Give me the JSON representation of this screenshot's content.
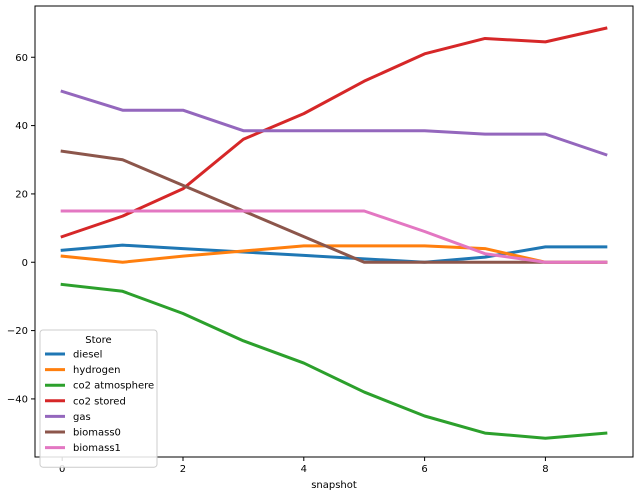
{
  "chart_data": {
    "type": "line",
    "xlabel": "snapshot",
    "ylabel": "",
    "xlim": [
      -0.45,
      9.45
    ],
    "ylim": [
      -57,
      75
    ],
    "xticks": [
      0,
      2,
      4,
      6,
      8
    ],
    "yticks": [
      -40,
      -20,
      0,
      20,
      40,
      60
    ],
    "grid": false,
    "legend": {
      "title": "Store",
      "placement": "lower-left"
    },
    "x": [
      0,
      1,
      2,
      3,
      4,
      5,
      6,
      7,
      8,
      9
    ],
    "series": [
      {
        "name": "diesel",
        "color": "#1f77b4",
        "values": [
          3.5,
          5,
          4,
          3,
          2,
          1,
          0,
          1.5,
          4.5,
          4.5
        ]
      },
      {
        "name": "hydrogen",
        "color": "#ff7f0e",
        "values": [
          1.8,
          0,
          1.8,
          3.3,
          4.8,
          4.8,
          4.8,
          4,
          0,
          0
        ]
      },
      {
        "name": "co2 atmosphere",
        "color": "#2ca02c",
        "values": [
          -6.5,
          -8.5,
          -15,
          -23,
          -29.5,
          -38,
          -45,
          -50,
          -51.5,
          -50
        ]
      },
      {
        "name": "co2 stored",
        "color": "#d62728",
        "values": [
          7.5,
          13.5,
          21.5,
          36,
          43.5,
          53,
          61,
          65.5,
          64.5,
          68.5
        ]
      },
      {
        "name": "gas",
        "color": "#9467bd",
        "values": [
          50,
          44.5,
          44.5,
          38.5,
          38.5,
          38.5,
          38.5,
          37.5,
          37.5,
          31.5
        ]
      },
      {
        "name": "biomass0",
        "color": "#8c564b",
        "values": [
          32.5,
          30,
          22.5,
          15,
          7.5,
          0,
          0,
          0,
          0,
          0
        ]
      },
      {
        "name": "biomass1",
        "color": "#e377c2",
        "values": [
          15,
          15,
          15,
          15,
          15,
          15,
          9,
          2.5,
          0,
          0
        ]
      }
    ]
  }
}
